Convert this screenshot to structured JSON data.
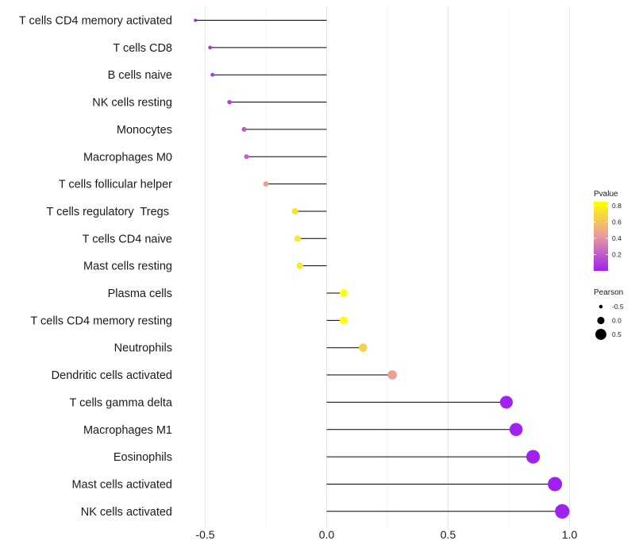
{
  "chart_data": {
    "type": "lollipop",
    "xlabel": "",
    "ylabel": "",
    "xlim": [
      -0.58,
      1.0
    ],
    "x_ticks": [
      -0.5,
      0.0,
      0.5,
      1.0
    ],
    "x_tick_labels": [
      "-0.5",
      "0.0",
      "0.5",
      "1.0"
    ],
    "grid": true,
    "points": [
      {
        "category": "T cells CD4 memory activated",
        "pearson": -0.54,
        "pvalue": 0.02
      },
      {
        "category": "T cells CD8",
        "pearson": -0.48,
        "pvalue": 0.05
      },
      {
        "category": "B cells naive",
        "pearson": -0.47,
        "pvalue": 0.05
      },
      {
        "category": "NK cells resting",
        "pearson": -0.4,
        "pvalue": 0.1
      },
      {
        "category": "Monocytes",
        "pearson": -0.34,
        "pvalue": 0.2
      },
      {
        "category": "Macrophages M0",
        "pearson": -0.33,
        "pvalue": 0.22
      },
      {
        "category": "T cells follicular helper",
        "pearson": -0.25,
        "pvalue": 0.45
      },
      {
        "category": "T cells regulatory  Tregs ",
        "pearson": -0.13,
        "pvalue": 0.73
      },
      {
        "category": "T cells CD4 naive",
        "pearson": -0.12,
        "pvalue": 0.75
      },
      {
        "category": "Mast cells resting",
        "pearson": -0.11,
        "pvalue": 0.76
      },
      {
        "category": "Plasma cells",
        "pearson": 0.07,
        "pvalue": 0.84
      },
      {
        "category": "T cells CD4 memory resting",
        "pearson": 0.07,
        "pvalue": 0.84
      },
      {
        "category": "Neutrophils",
        "pearson": 0.15,
        "pvalue": 0.66
      },
      {
        "category": "Dendritic cells activated",
        "pearson": 0.27,
        "pvalue": 0.45
      },
      {
        "category": "T cells gamma delta",
        "pearson": 0.74,
        "pvalue": 0.01
      },
      {
        "category": "Macrophages M1",
        "pearson": 0.78,
        "pvalue": 0.01
      },
      {
        "category": "Eosinophils",
        "pearson": 0.85,
        "pvalue": 0.005
      },
      {
        "category": "Mast cells activated",
        "pearson": 0.94,
        "pvalue": 0.001
      },
      {
        "category": "NK cells activated",
        "pearson": 0.97,
        "pvalue": 0.0005
      }
    ],
    "color_legend": {
      "title": "Pvalue",
      "range": [
        0.0,
        0.85
      ],
      "ticks": [
        0.2,
        0.4,
        0.6,
        0.8
      ],
      "tick_labels": [
        "0.2",
        "0.4",
        "0.6",
        "0.8"
      ],
      "low_color": "#a020f0",
      "mid_color": "#e89aa0",
      "high_color": "#ffff00"
    },
    "size_legend": {
      "title": "Pearson",
      "values": [
        -0.5,
        0.0,
        0.5
      ],
      "labels": [
        "-0.5",
        "0.0",
        "0.5"
      ]
    }
  }
}
